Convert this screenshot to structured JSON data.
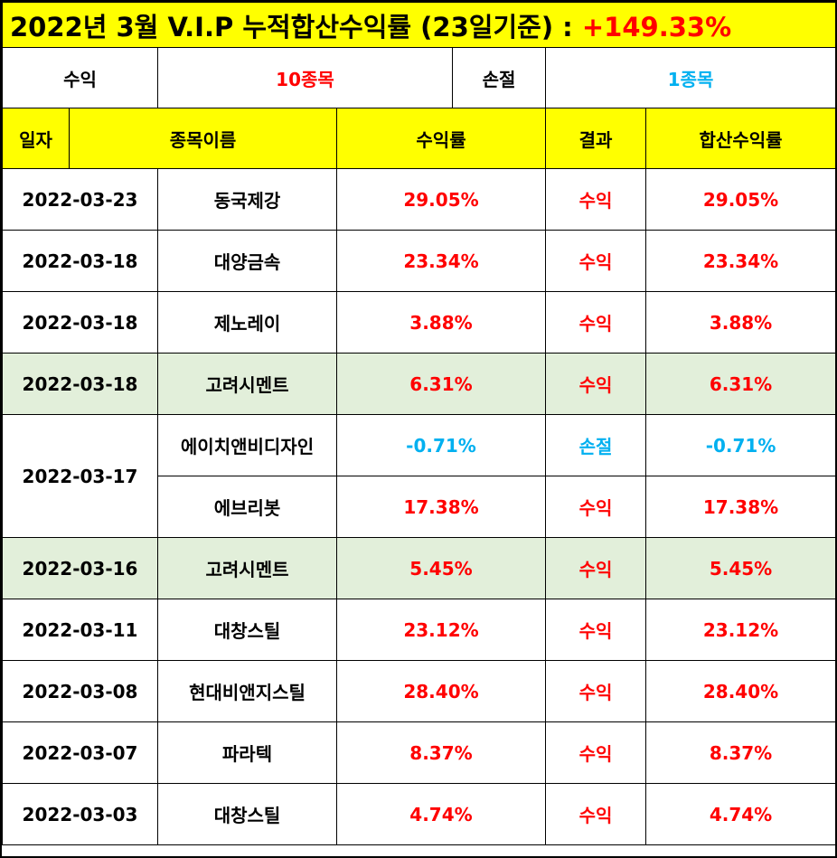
{
  "title": {
    "text": "2022년 3월 V.I.P 누적합산수익률 (23일기준) : ",
    "total": "+149.33%"
  },
  "summary": {
    "profit_label": "수익",
    "profit_value": "10종목",
    "loss_label": "손절",
    "loss_value": "1종목"
  },
  "headers": {
    "date": "일자",
    "name": "종목이름",
    "rate": "수익률",
    "result": "결과",
    "cumulative": "합산수익률"
  },
  "colors": {
    "header_bg": "#ffff00",
    "profit": "#ff0000",
    "loss": "#00b0f0",
    "highlight_bg": "#e2efda"
  },
  "rows": [
    {
      "date": "2022-03-23",
      "name": "동국제강",
      "rate": "29.05%",
      "result": "수익",
      "cumulative": "29.05%"
    },
    {
      "date": "2022-03-18",
      "name": "대양금속",
      "rate": "23.34%",
      "result": "수익",
      "cumulative": "23.34%"
    },
    {
      "date": "2022-03-18",
      "name": "제노레이",
      "rate": "3.88%",
      "result": "수익",
      "cumulative": "3.88%"
    },
    {
      "date": "2022-03-18",
      "name": "고려시멘트",
      "rate": "6.31%",
      "result": "수익",
      "cumulative": "6.31%"
    },
    {
      "date": "2022-03-17",
      "name": "에이치앤비디자인",
      "rate": "-0.71%",
      "result": "손절",
      "cumulative": "-0.71%"
    },
    {
      "date": "2022-03-17",
      "name": "에브리봇",
      "rate": "17.38%",
      "result": "수익",
      "cumulative": "17.38%"
    },
    {
      "date": "2022-03-16",
      "name": "고려시멘트",
      "rate": "5.45%",
      "result": "수익",
      "cumulative": "5.45%"
    },
    {
      "date": "2022-03-11",
      "name": "대창스틸",
      "rate": "23.12%",
      "result": "수익",
      "cumulative": "23.12%"
    },
    {
      "date": "2022-03-08",
      "name": "현대비앤지스틸",
      "rate": "28.40%",
      "result": "수익",
      "cumulative": "28.40%"
    },
    {
      "date": "2022-03-07",
      "name": "파라텍",
      "rate": "8.37%",
      "result": "수익",
      "cumulative": "8.37%"
    },
    {
      "date": "2022-03-03",
      "name": "대창스틸",
      "rate": "4.74%",
      "result": "수익",
      "cumulative": "4.74%"
    }
  ]
}
